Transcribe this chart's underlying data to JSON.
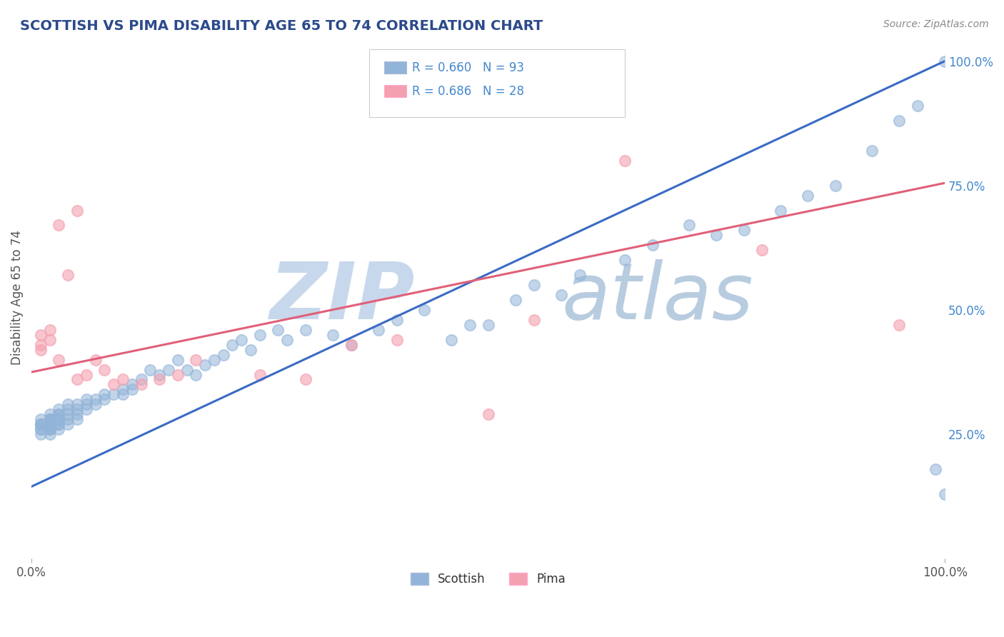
{
  "title": "SCOTTISH VS PIMA DISABILITY AGE 65 TO 74 CORRELATION CHART",
  "source_text": "Source: ZipAtlas.com",
  "ylabel": "Disability Age 65 to 74",
  "xlim": [
    0.0,
    1.0
  ],
  "ylim": [
    0.0,
    1.05
  ],
  "xtick_positions": [
    0.0,
    1.0
  ],
  "xtick_labels": [
    "0.0%",
    "100.0%"
  ],
  "ytick_right_labels": [
    "25.0%",
    "50.0%",
    "75.0%",
    "100.0%"
  ],
  "ytick_right_vals": [
    0.25,
    0.5,
    0.75,
    1.0
  ],
  "legend_line1": "R = 0.660   N = 93",
  "legend_line2": "R = 0.686   N = 28",
  "blue_scatter_color": "#92B4D8",
  "pink_scatter_color": "#F4A0B0",
  "blue_line_color": "#3A6BC4",
  "pink_line_color": "#E0607A",
  "blue_legend_color": "#92B4D8",
  "pink_legend_color": "#F4A0B0",
  "title_color": "#2C4A8C",
  "source_color": "#888888",
  "ylabel_color": "#555555",
  "right_tick_color": "#4488CC",
  "bottom_tick_color": "#555555",
  "background_color": "#FFFFFF",
  "grid_color": "#CCCCCC",
  "watermark_zip_color": "#C8D8EC",
  "watermark_atlas_color": "#B8CCE0",
  "blue_line_x0": 0.0,
  "blue_line_y0": 0.145,
  "blue_line_x1": 1.0,
  "blue_line_y1": 1.0,
  "pink_line_x0": 0.0,
  "pink_line_y0": 0.375,
  "pink_line_x1": 1.0,
  "pink_line_y1": 0.755,
  "scottish_x": [
    0.01,
    0.01,
    0.01,
    0.01,
    0.01,
    0.01,
    0.01,
    0.02,
    0.02,
    0.02,
    0.02,
    0.02,
    0.02,
    0.02,
    0.02,
    0.02,
    0.02,
    0.02,
    0.02,
    0.02,
    0.02,
    0.03,
    0.03,
    0.03,
    0.03,
    0.03,
    0.03,
    0.03,
    0.03,
    0.04,
    0.04,
    0.04,
    0.04,
    0.04,
    0.05,
    0.05,
    0.05,
    0.05,
    0.06,
    0.06,
    0.06,
    0.07,
    0.07,
    0.08,
    0.08,
    0.09,
    0.1,
    0.1,
    0.11,
    0.11,
    0.12,
    0.13,
    0.14,
    0.15,
    0.16,
    0.17,
    0.18,
    0.19,
    0.2,
    0.21,
    0.22,
    0.23,
    0.24,
    0.25,
    0.27,
    0.28,
    0.3,
    0.33,
    0.35,
    0.38,
    0.4,
    0.43,
    0.46,
    0.48,
    0.5,
    0.53,
    0.55,
    0.58,
    0.6,
    0.65,
    0.68,
    0.72,
    0.75,
    0.78,
    0.82,
    0.85,
    0.88,
    0.92,
    0.95,
    0.97,
    0.99,
    1.0,
    1.0
  ],
  "scottish_y": [
    0.27,
    0.26,
    0.28,
    0.27,
    0.27,
    0.25,
    0.26,
    0.27,
    0.28,
    0.26,
    0.27,
    0.28,
    0.29,
    0.27,
    0.26,
    0.25,
    0.28,
    0.27,
    0.26,
    0.27,
    0.28,
    0.27,
    0.28,
    0.29,
    0.26,
    0.27,
    0.28,
    0.3,
    0.29,
    0.28,
    0.3,
    0.29,
    0.27,
    0.31,
    0.29,
    0.3,
    0.31,
    0.28,
    0.3,
    0.31,
    0.32,
    0.31,
    0.32,
    0.32,
    0.33,
    0.33,
    0.33,
    0.34,
    0.34,
    0.35,
    0.36,
    0.38,
    0.37,
    0.38,
    0.4,
    0.38,
    0.37,
    0.39,
    0.4,
    0.41,
    0.43,
    0.44,
    0.42,
    0.45,
    0.46,
    0.44,
    0.46,
    0.45,
    0.43,
    0.46,
    0.48,
    0.5,
    0.44,
    0.47,
    0.47,
    0.52,
    0.55,
    0.53,
    0.57,
    0.6,
    0.63,
    0.67,
    0.65,
    0.66,
    0.7,
    0.73,
    0.75,
    0.82,
    0.88,
    0.91,
    0.18,
    1.0,
    0.13
  ],
  "pima_x": [
    0.01,
    0.01,
    0.01,
    0.02,
    0.02,
    0.03,
    0.03,
    0.04,
    0.05,
    0.05,
    0.06,
    0.07,
    0.08,
    0.09,
    0.1,
    0.12,
    0.14,
    0.16,
    0.18,
    0.25,
    0.3,
    0.35,
    0.4,
    0.5,
    0.55,
    0.65,
    0.8,
    0.95
  ],
  "pima_y": [
    0.43,
    0.45,
    0.42,
    0.44,
    0.46,
    0.4,
    0.67,
    0.57,
    0.7,
    0.36,
    0.37,
    0.4,
    0.38,
    0.35,
    0.36,
    0.35,
    0.36,
    0.37,
    0.4,
    0.37,
    0.36,
    0.43,
    0.44,
    0.29,
    0.48,
    0.8,
    0.62,
    0.47
  ]
}
